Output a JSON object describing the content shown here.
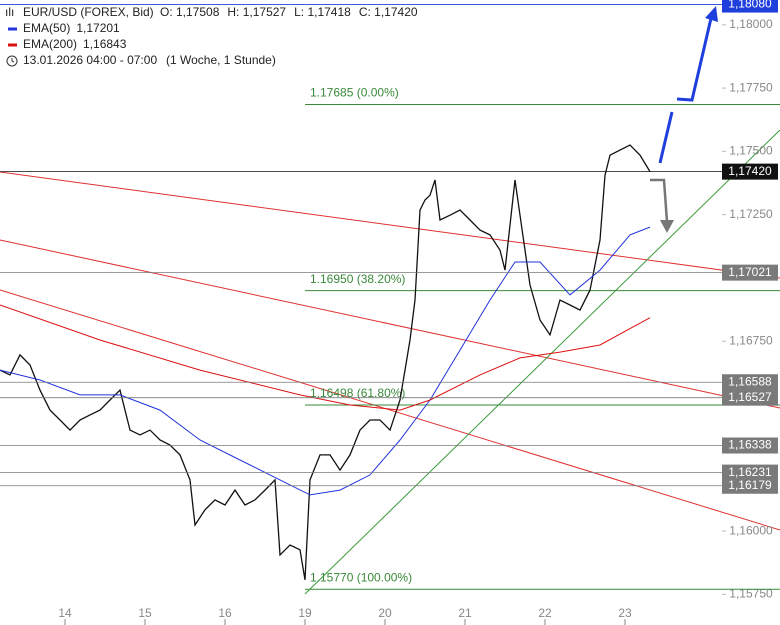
{
  "chart_data": {
    "type": "line",
    "header": {
      "symbol": "EUR/USD (FOREX, Bid)",
      "ohlc": [
        "O: 1,17508",
        "H: 1,17527",
        "L: 1,17418",
        "C: 1,17420"
      ],
      "period": "13.01.2026 04:00 - 07:00",
      "interval": "(1 Woche, 1 Stunde)"
    },
    "xlim": [
      -0.8125,
      8.9375
    ],
    "xticks": [
      {
        "value": 0,
        "label": "14"
      },
      {
        "value": 1,
        "label": "15"
      },
      {
        "value": 2,
        "label": "16"
      },
      {
        "value": 3,
        "label": "19"
      },
      {
        "value": 4,
        "label": "20"
      },
      {
        "value": 5,
        "label": "21"
      },
      {
        "value": 6,
        "label": "22"
      },
      {
        "value": 7,
        "label": "23"
      }
    ],
    "ylim": [
      1.15708,
      1.18098
    ],
    "yticks": [
      {
        "value": 1.1575,
        "label": "1,15750"
      },
      {
        "value": 1.16,
        "label": "1,16000"
      },
      {
        "value": 1.1675,
        "label": "1,16750"
      },
      {
        "value": 1.1725,
        "label": "1,17250"
      },
      {
        "value": 1.175,
        "label": "1,17500"
      },
      {
        "value": 1.1775,
        "label": "1,17750"
      },
      {
        "value": 1.18,
        "label": "1,18000"
      }
    ],
    "series": [
      {
        "name": "EUR/USD",
        "color": "#111111",
        "x": [
          -0.8125,
          -0.6875,
          -0.5625,
          -0.4375,
          -0.3125,
          -0.1875,
          -0.0625,
          0.0625,
          0.1875,
          0.3125,
          0.4375,
          0.5625,
          0.6875,
          0.8125,
          0.9375,
          1.0625,
          1.1875,
          1.3125,
          1.4375,
          1.5625,
          1.625,
          1.75,
          1.875,
          2,
          2.125,
          2.25,
          2.375,
          2.5,
          2.625,
          2.6875,
          2.8125,
          2.9375,
          3,
          3.0625,
          3.1875,
          3.3125,
          3.4375,
          3.5625,
          3.6875,
          3.8125,
          3.9375,
          4.0625,
          4.1875,
          4.25,
          4.3125,
          4.375,
          4.4375,
          4.5,
          4.5625,
          4.625,
          4.6875,
          4.8125,
          4.9375,
          5.0625,
          5.1875,
          5.3125,
          5.4375,
          5.5,
          5.625,
          5.6875,
          5.75,
          5.8125,
          5.9375,
          6.0625,
          6.1875,
          6.3125,
          6.4375,
          6.5625,
          6.6875,
          6.75,
          6.8125,
          6.9375,
          7.0625,
          7.1875,
          7.3125
        ],
        "values": [
          1.16636,
          1.16617,
          1.16696,
          1.16656,
          1.16557,
          1.16478,
          1.16439,
          1.16399,
          1.16439,
          1.16459,
          1.16478,
          1.16518,
          1.16557,
          1.16399,
          1.1638,
          1.16399,
          1.1636,
          1.1634,
          1.16301,
          1.16202,
          1.16024,
          1.16084,
          1.16123,
          1.16103,
          1.16162,
          1.16103,
          1.16123,
          1.16162,
          1.16202,
          1.15906,
          1.15945,
          1.15926,
          1.15807,
          1.16202,
          1.16301,
          1.16301,
          1.16241,
          1.16301,
          1.16399,
          1.16439,
          1.16439,
          1.16399,
          1.16518,
          1.16636,
          1.16755,
          1.16913,
          1.17268,
          1.17308,
          1.17327,
          1.17387,
          1.17229,
          1.17248,
          1.17268,
          1.17229,
          1.17189,
          1.1717,
          1.1711,
          1.17031,
          1.17387,
          1.17248,
          1.1711,
          1.16972,
          1.16834,
          1.16775,
          1.16913,
          1.16893,
          1.16873,
          1.16952,
          1.1715,
          1.17406,
          1.17485,
          1.17505,
          1.17525,
          1.17485,
          1.1742
        ]
      },
      {
        "name": "EMA(50)",
        "value_label": "1,17201",
        "color": "#2233dd",
        "x": [
          -0.8125,
          -0.3125,
          0.1875,
          0.6875,
          1.1875,
          1.6875,
          2.1875,
          2.6875,
          3.0625,
          3.4375,
          3.8125,
          4.1875,
          4.5625,
          4.9375,
          5.3125,
          5.625,
          5.9375,
          6.3125,
          6.6875,
          7.0625,
          7.3125
        ],
        "values": [
          1.16636,
          1.16597,
          1.16538,
          1.16538,
          1.16478,
          1.1636,
          1.16281,
          1.16202,
          1.16143,
          1.16162,
          1.16222,
          1.1636,
          1.16518,
          1.16715,
          1.16913,
          1.17063,
          1.17063,
          1.16933,
          1.17031,
          1.1717,
          1.17201
        ]
      },
      {
        "name": "EMA(200)",
        "value_label": "1,16843",
        "color": "#dd1111",
        "x": [
          -0.8125,
          0.4375,
          1.6875,
          2.9375,
          3.5625,
          4.1875,
          4.5625,
          5.1875,
          5.6875,
          6.1875,
          6.6875,
          7.3125
        ],
        "values": [
          1.16893,
          1.16755,
          1.16636,
          1.16538,
          1.16498,
          1.16478,
          1.16518,
          1.16617,
          1.16684,
          1.16707,
          1.16735,
          1.16843
        ]
      }
    ],
    "levels": [
      {
        "value": 1.1808,
        "label": "1,18080",
        "color": "#1f3fdd"
      },
      {
        "value": 1.1742,
        "label": "1,17420",
        "color": "#111111"
      },
      {
        "value": 1.17021,
        "label": "1,17021",
        "color": "#7a7a7a"
      },
      {
        "value": 1.16588,
        "label": "1,16588",
        "color": "#7a7a7a"
      },
      {
        "value": 1.16527,
        "label": "1,16527",
        "color": "#7a7a7a"
      },
      {
        "value": 1.16338,
        "label": "1,16338",
        "color": "#7a7a7a"
      },
      {
        "value": 1.16231,
        "label": "1,16231",
        "color": "#7a7a7a"
      },
      {
        "value": 1.16179,
        "label": "1,16179",
        "color": "#7a7a7a"
      }
    ],
    "fib_levels": [
      {
        "value": 1.17685,
        "label": "1.17685 (0.00%)"
      },
      {
        "value": 1.1695,
        "label": "1.16950 (38.20%)"
      },
      {
        "value": 1.16498,
        "label": "1.16498 (61.80%)"
      },
      {
        "value": 1.1577,
        "label": "1.15770 (100.00%)"
      }
    ],
    "fib_color": "#3a8a3a"
  }
}
